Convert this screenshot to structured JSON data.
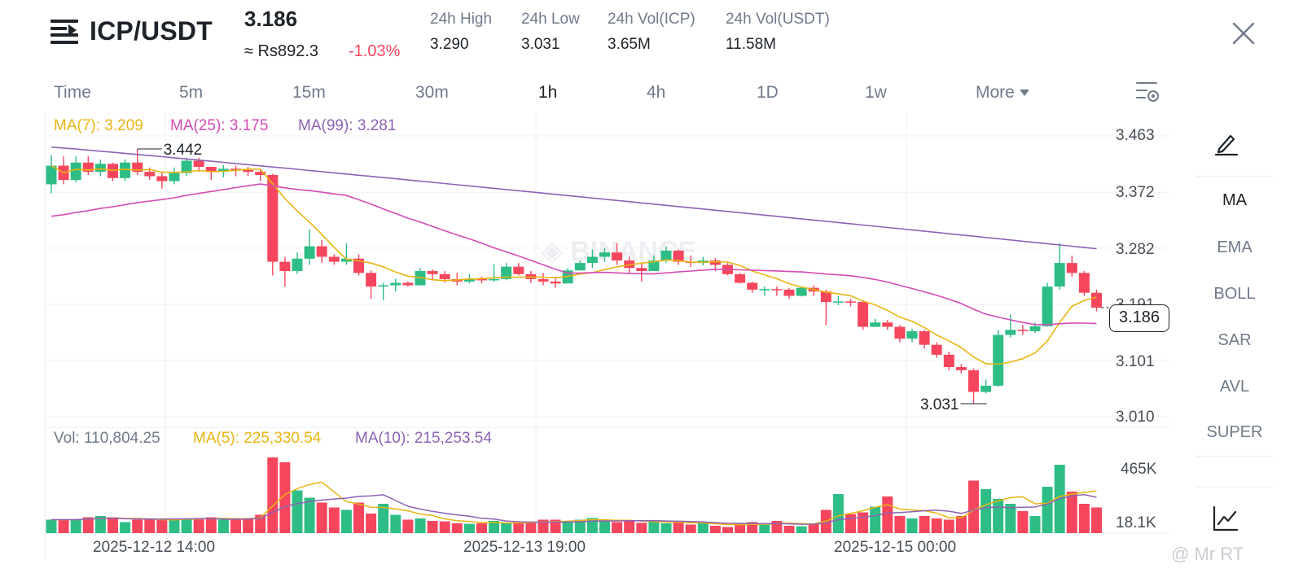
{
  "header": {
    "pair": "ICP/USDT",
    "last_price": "3.186",
    "fiat_price": "≈ Rs892.3",
    "change": "-1.03%",
    "stats": [
      {
        "label": "24h High",
        "value": "3.290"
      },
      {
        "label": "24h Low",
        "value": "3.031"
      },
      {
        "label": "24h Vol(ICP)",
        "value": "3.65M"
      },
      {
        "label": "24h Vol(USDT)",
        "value": "11.58M"
      }
    ]
  },
  "timeframes": [
    {
      "label": "Time",
      "active": false
    },
    {
      "label": "5m",
      "active": false
    },
    {
      "label": "15m",
      "active": false
    },
    {
      "label": "30m",
      "active": false
    },
    {
      "label": "1h",
      "active": true
    },
    {
      "label": "4h",
      "active": false
    },
    {
      "label": "1D",
      "active": false
    },
    {
      "label": "1w",
      "active": false
    },
    {
      "label": "More",
      "active": false
    }
  ],
  "indicators": [
    "MA",
    "EMA",
    "BOLL",
    "SAR",
    "AVL",
    "SUPER"
  ],
  "legend": {
    "ma7": "MA(7): 3.209",
    "ma25": "MA(25): 3.175",
    "ma99": "MA(99): 3.281",
    "vol": "Vol: 110,804.25",
    "vol_ma5": "MA(5): 225,330.54",
    "vol_ma10": "MA(10): 215,253.54"
  },
  "colors": {
    "up": "#2ebd85",
    "down": "#f6465d",
    "ma7": "#e8b512",
    "ma25": "#d54bb5",
    "ma99": "#8d63b5"
  },
  "watermark": "@ Mr RT",
  "chart_data": {
    "type": "candlestick",
    "interval": "1h",
    "price_axis_ticks": [
      "3.463",
      "3.372",
      "3.282",
      "3.191",
      "3.101",
      "3.010"
    ],
    "volume_axis_ticks": [
      "465K",
      "18.1K"
    ],
    "x_tick_labels": [
      "2025-12-12 14:00",
      "2025-12-13 19:00",
      "2025-12-15 00:00"
    ],
    "current_price": "3.186",
    "high_marker": "3.442",
    "low_marker": "3.031",
    "candles": [
      [
        3.385,
        3.415,
        3.432,
        3.37
      ],
      [
        3.415,
        3.392,
        3.43,
        3.385
      ],
      [
        3.392,
        3.42,
        3.43,
        3.388
      ],
      [
        3.42,
        3.405,
        3.43,
        3.4
      ],
      [
        3.405,
        3.418,
        3.425,
        3.398
      ],
      [
        3.418,
        3.395,
        3.42,
        3.39
      ],
      [
        3.395,
        3.42,
        3.425,
        3.39
      ],
      [
        3.42,
        3.405,
        3.442,
        3.4
      ],
      [
        3.405,
        3.398,
        3.412,
        3.392
      ],
      [
        3.398,
        3.39,
        3.405,
        3.378
      ],
      [
        3.39,
        3.403,
        3.412,
        3.385
      ],
      [
        3.403,
        3.423,
        3.428,
        3.398
      ],
      [
        3.423,
        3.413,
        3.428,
        3.405
      ],
      [
        3.413,
        3.405,
        3.413,
        3.392
      ],
      [
        3.405,
        3.41,
        3.416,
        3.396
      ],
      [
        3.41,
        3.408,
        3.415,
        3.398
      ],
      [
        3.408,
        3.405,
        3.413,
        3.398
      ],
      [
        3.405,
        3.4,
        3.41,
        3.39
      ],
      [
        3.4,
        3.26,
        3.402,
        3.238
      ],
      [
        3.26,
        3.245,
        3.268,
        3.22
      ],
      [
        3.245,
        3.265,
        3.275,
        3.24
      ],
      [
        3.265,
        3.285,
        3.312,
        3.255
      ],
      [
        3.285,
        3.268,
        3.295,
        3.258
      ],
      [
        3.268,
        3.26,
        3.272,
        3.255
      ],
      [
        3.26,
        3.265,
        3.29,
        3.255
      ],
      [
        3.265,
        3.242,
        3.272,
        3.238
      ],
      [
        3.242,
        3.22,
        3.246,
        3.2
      ],
      [
        3.22,
        3.222,
        3.226,
        3.198
      ],
      [
        3.222,
        3.226,
        3.233,
        3.212
      ],
      [
        3.226,
        3.222,
        3.228,
        3.22
      ],
      [
        3.222,
        3.245,
        3.25,
        3.222
      ],
      [
        3.245,
        3.24,
        3.248,
        3.23
      ],
      [
        3.24,
        3.232,
        3.245,
        3.226
      ],
      [
        3.232,
        3.228,
        3.242,
        3.222
      ],
      [
        3.228,
        3.232,
        3.24,
        3.225
      ],
      [
        3.232,
        3.23,
        3.236,
        3.225
      ],
      [
        3.23,
        3.232,
        3.256,
        3.228
      ],
      [
        3.232,
        3.252,
        3.258,
        3.23
      ],
      [
        3.252,
        3.24,
        3.258,
        3.238
      ],
      [
        3.24,
        3.232,
        3.245,
        3.226
      ],
      [
        3.232,
        3.228,
        3.242,
        3.222
      ],
      [
        3.228,
        3.225,
        3.235,
        3.218
      ],
      [
        3.225,
        3.246,
        3.25,
        3.225
      ],
      [
        3.246,
        3.258,
        3.262,
        3.246
      ],
      [
        3.258,
        3.268,
        3.28,
        3.25
      ],
      [
        3.268,
        3.275,
        3.282,
        3.26
      ],
      [
        3.275,
        3.262,
        3.29,
        3.255
      ],
      [
        3.262,
        3.25,
        3.268,
        3.24
      ],
      [
        3.25,
        3.245,
        3.258,
        3.228
      ],
      [
        3.245,
        3.262,
        3.27,
        3.245
      ],
      [
        3.262,
        3.278,
        3.285,
        3.258
      ],
      [
        3.278,
        3.26,
        3.28,
        3.255
      ],
      [
        3.26,
        3.258,
        3.27,
        3.252
      ],
      [
        3.258,
        3.262,
        3.268,
        3.254
      ],
      [
        3.262,
        3.255,
        3.266,
        3.245
      ],
      [
        3.255,
        3.24,
        3.258,
        3.238
      ],
      [
        3.24,
        3.226,
        3.242,
        3.225
      ],
      [
        3.226,
        3.215,
        3.228,
        3.21
      ],
      [
        3.215,
        3.216,
        3.22,
        3.205
      ],
      [
        3.216,
        3.215,
        3.22,
        3.205
      ],
      [
        3.215,
        3.205,
        3.218,
        3.2
      ],
      [
        3.205,
        3.218,
        3.22,
        3.204
      ],
      [
        3.218,
        3.212,
        3.222,
        3.205
      ],
      [
        3.212,
        3.195,
        3.215,
        3.158
      ],
      [
        3.195,
        3.196,
        3.205,
        3.19
      ],
      [
        3.196,
        3.195,
        3.2,
        3.188
      ],
      [
        3.195,
        3.155,
        3.198,
        3.15
      ],
      [
        3.155,
        3.162,
        3.168,
        3.155
      ],
      [
        3.162,
        3.155,
        3.166,
        3.15
      ],
      [
        3.155,
        3.136,
        3.158,
        3.13
      ],
      [
        3.136,
        3.148,
        3.152,
        3.13
      ],
      [
        3.148,
        3.126,
        3.15,
        3.12
      ],
      [
        3.126,
        3.11,
        3.13,
        3.105
      ],
      [
        3.11,
        3.09,
        3.115,
        3.085
      ],
      [
        3.09,
        3.085,
        3.095,
        3.08
      ],
      [
        3.085,
        3.05,
        3.088,
        3.031
      ],
      [
        3.05,
        3.06,
        3.07,
        3.048
      ],
      [
        3.06,
        3.142,
        3.15,
        3.058
      ],
      [
        3.142,
        3.15,
        3.175,
        3.138
      ],
      [
        3.15,
        3.148,
        3.158,
        3.142
      ],
      [
        3.148,
        3.156,
        3.162,
        3.145
      ],
      [
        3.156,
        3.22,
        3.226,
        3.155
      ],
      [
        3.22,
        3.258,
        3.29,
        3.215
      ],
      [
        3.258,
        3.242,
        3.27,
        3.236
      ],
      [
        3.242,
        3.21,
        3.245,
        3.205
      ],
      [
        3.21,
        3.186,
        3.215,
        3.18
      ]
    ],
    "volumes": [
      55,
      55,
      55,
      65,
      70,
      65,
      45,
      55,
      55,
      55,
      60,
      60,
      60,
      65,
      55,
      55,
      60,
      75,
      310,
      290,
      175,
      145,
      125,
      105,
      95,
      125,
      80,
      120,
      75,
      55,
      60,
      50,
      48,
      40,
      38,
      40,
      50,
      40,
      42,
      42,
      55,
      55,
      50,
      55,
      62,
      50,
      45,
      50,
      42,
      48,
      40,
      45,
      35,
      42,
      30,
      25,
      38,
      45,
      40,
      50,
      30,
      28,
      40,
      95,
      160,
      78,
      85,
      108,
      150,
      70,
      60,
      70,
      60,
      55,
      70,
      215,
      180,
      140,
      120,
      90,
      70,
      190,
      280,
      170,
      120,
      105
    ]
  }
}
